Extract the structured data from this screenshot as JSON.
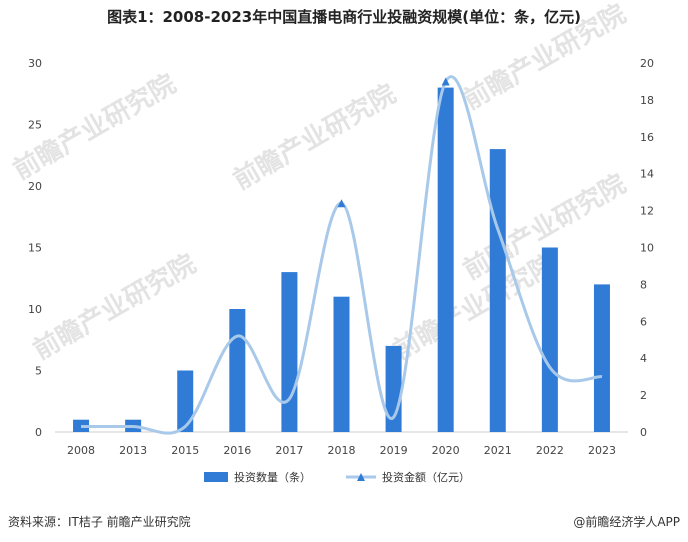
{
  "header": {
    "title": "图表1：2008-2023年中国直播电商行业投融资规模(单位：条，亿元)"
  },
  "footer": {
    "source": "资料来源：IT桔子 前瞻产业研究院",
    "brand": "@前瞻经济学人APP"
  },
  "watermark": {
    "text": "前瞻产业研究院"
  },
  "colors": {
    "bar": "#2f7bd6",
    "line": "#a9c9ea",
    "marker": "#2f7bd6"
  },
  "chart_data": {
    "type": "bar",
    "categories": [
      "2008",
      "2013",
      "2015",
      "2016",
      "2017",
      "2018",
      "2019",
      "2020",
      "2021",
      "2022",
      "2023"
    ],
    "series": [
      {
        "name": "投资数量（条）",
        "type": "bar",
        "axis": "left",
        "values": [
          1,
          1,
          5,
          10,
          13,
          11,
          7,
          28,
          23,
          15,
          12
        ]
      },
      {
        "name": "投资金额（亿元）",
        "type": "line",
        "axis": "right",
        "smooth": true,
        "values": [
          0.3,
          0.3,
          0.3,
          5.2,
          1.8,
          12.4,
          0.8,
          19,
          11,
          3.5,
          3
        ]
      }
    ],
    "y_left": {
      "min": 0,
      "max": 30,
      "ticks": [
        0,
        5,
        10,
        15,
        20,
        25,
        30
      ]
    },
    "y_right": {
      "min": 0,
      "max": 20,
      "ticks": [
        0,
        2,
        4,
        6,
        8,
        10,
        12,
        14,
        16,
        18,
        20
      ]
    },
    "legend_position": "bottom",
    "grid": false
  }
}
